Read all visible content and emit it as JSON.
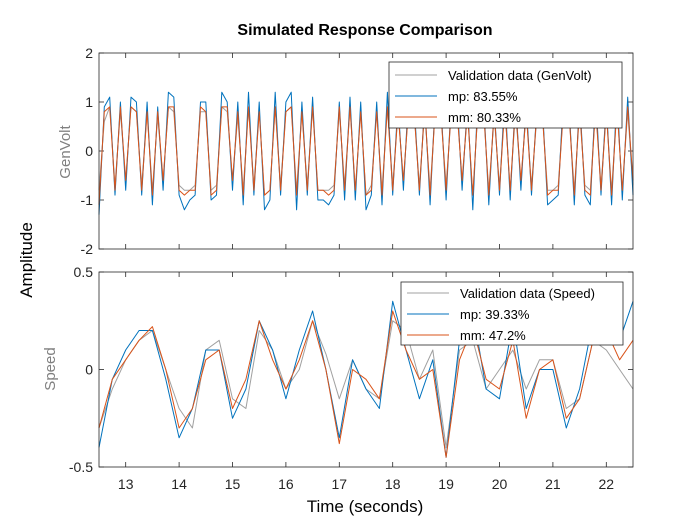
{
  "chart_data": {
    "type": "line",
    "title": "Simulated Response Comparison",
    "xlabel": "Time (seconds)",
    "ylabel": "Amplitude",
    "xlim": [
      12.5,
      22.5
    ],
    "xticks": [
      "13",
      "14",
      "15",
      "16",
      "17",
      "18",
      "19",
      "20",
      "21",
      "22"
    ],
    "colors": {
      "validation": "#a0a0a0",
      "mp": "#0072bd",
      "mm": "#d95319"
    },
    "panels": [
      {
        "ylabel": "GenVolt",
        "ylim": [
          -2,
          2
        ],
        "yticks": [
          "2",
          "1",
          "0",
          "-1",
          "-2"
        ],
        "legend_position": "top-right",
        "series": [
          {
            "name": "Validation data (GenVolt)",
            "x": [
              12.5,
              12.6,
              12.7,
              12.8,
              12.9,
              13.0,
              13.1,
              13.2,
              13.3,
              13.4,
              13.5,
              13.6,
              13.7,
              13.8,
              13.9,
              14.0,
              14.1,
              14.2,
              14.3,
              14.4,
              14.5,
              14.6,
              14.7,
              14.8,
              14.9,
              15.0,
              15.1,
              15.2,
              15.3,
              15.4,
              15.5,
              15.6,
              15.7,
              15.8,
              15.9,
              16.0,
              16.1,
              16.2,
              16.3,
              16.4,
              16.5,
              16.6,
              16.7,
              16.8,
              16.9,
              17.0,
              17.1,
              17.2,
              17.3,
              17.4,
              17.5,
              17.6,
              17.7,
              17.8,
              17.9,
              18.0,
              18.1,
              18.2,
              18.3,
              18.4,
              18.5,
              18.6,
              18.7,
              18.8,
              18.9,
              19.0,
              19.1,
              19.2,
              19.3,
              19.4,
              19.5,
              19.6,
              19.7,
              19.8,
              19.9,
              20.0,
              20.1,
              20.2,
              20.3,
              20.4,
              20.5,
              20.6,
              20.7,
              20.8,
              20.9,
              21.0,
              21.1,
              21.2,
              21.3,
              21.4,
              21.5,
              21.6,
              21.7,
              21.8,
              21.9,
              22.0,
              22.1,
              22.2,
              22.3,
              22.4,
              22.5
            ],
            "y": [
              -0.8,
              0.6,
              0.9,
              -0.7,
              0.8,
              -0.6,
              0.9,
              0.8,
              -0.7,
              0.8,
              -0.8,
              0.7,
              -0.6,
              0.9,
              0.8,
              -0.7,
              -0.8,
              -0.8,
              -0.7,
              0.8,
              0.8,
              -0.8,
              -0.7,
              0.9,
              0.8,
              -0.6,
              0.7,
              -0.8,
              0.9,
              -0.7,
              0.8,
              -0.9,
              -0.8,
              0.9,
              -0.7,
              0.8,
              0.9,
              -0.8,
              0.8,
              -0.7,
              0.9,
              -0.8,
              -0.8,
              -0.8,
              -0.7,
              0.8,
              -0.7,
              0.9,
              -0.8,
              0.8,
              -0.9,
              -0.7,
              0.8,
              -0.8,
              0.9,
              -0.7,
              0.8,
              -0.6,
              0.9,
              0.8,
              -0.7,
              0.8,
              -0.8,
              0.9,
              0.8,
              -0.7,
              0.8,
              0.9,
              -0.6,
              0.8,
              -0.9,
              0.9,
              0.8,
              -0.8,
              0.7,
              -0.7,
              0.9,
              -0.8,
              0.8,
              -0.6,
              0.8,
              -0.7,
              0.7,
              0.8,
              -0.8,
              -0.8,
              -0.7,
              0.9,
              0.8,
              -0.8,
              0.8,
              -0.7,
              -0.8,
              0.9,
              -0.7,
              0.8,
              -0.8,
              0.9,
              -0.8,
              0.8,
              -0.7
            ]
          },
          {
            "name": "mp: 83.55%",
            "x": [
              12.5,
              12.6,
              12.7,
              12.8,
              12.9,
              13.0,
              13.1,
              13.2,
              13.3,
              13.4,
              13.5,
              13.6,
              13.7,
              13.8,
              13.9,
              14.0,
              14.1,
              14.2,
              14.3,
              14.4,
              14.5,
              14.6,
              14.7,
              14.8,
              14.9,
              15.0,
              15.1,
              15.2,
              15.3,
              15.4,
              15.5,
              15.6,
              15.7,
              15.8,
              15.9,
              16.0,
              16.1,
              16.2,
              16.3,
              16.4,
              16.5,
              16.6,
              16.7,
              16.8,
              16.9,
              17.0,
              17.1,
              17.2,
              17.3,
              17.4,
              17.5,
              17.6,
              17.7,
              17.8,
              17.9,
              18.0,
              18.1,
              18.2,
              18.3,
              18.4,
              18.5,
              18.6,
              18.7,
              18.8,
              18.9,
              19.0,
              19.1,
              19.2,
              19.3,
              19.4,
              19.5,
              19.6,
              19.7,
              19.8,
              19.9,
              20.0,
              20.1,
              20.2,
              20.3,
              20.4,
              20.5,
              20.6,
              20.7,
              20.8,
              20.9,
              21.0,
              21.1,
              21.2,
              21.3,
              21.4,
              21.5,
              21.6,
              21.7,
              21.8,
              21.9,
              22.0,
              22.1,
              22.2,
              22.3,
              22.4,
              22.5
            ],
            "y": [
              -1.3,
              0.9,
              1.1,
              -0.9,
              1.0,
              -0.8,
              1.1,
              1.0,
              -0.9,
              1.0,
              -1.1,
              0.9,
              -0.8,
              1.2,
              1.1,
              -0.9,
              -1.2,
              -1.0,
              -0.9,
              1.0,
              1.0,
              -1.0,
              -0.9,
              1.2,
              1.0,
              -0.8,
              1.0,
              -1.1,
              1.2,
              -0.9,
              1.0,
              -1.2,
              -1.0,
              1.2,
              -0.9,
              1.0,
              1.2,
              -1.2,
              1.0,
              -0.9,
              1.1,
              -1.0,
              -1.0,
              -1.1,
              -0.9,
              1.0,
              -1.0,
              1.1,
              -1.0,
              1.0,
              -1.2,
              -0.9,
              1.0,
              -1.1,
              1.2,
              -0.9,
              1.0,
              -0.8,
              1.2,
              1.0,
              -0.9,
              1.0,
              -1.1,
              1.1,
              1.0,
              -1.0,
              1.1,
              1.2,
              -0.8,
              1.0,
              -1.2,
              1.2,
              1.1,
              -1.1,
              0.9,
              -0.9,
              1.2,
              -1.0,
              1.1,
              -0.8,
              1.0,
              -0.9,
              0.9,
              1.0,
              -1.1,
              -1.0,
              -0.9,
              1.2,
              1.0,
              -1.1,
              1.1,
              -0.9,
              -1.1,
              1.2,
              -0.9,
              1.0,
              -1.1,
              1.2,
              -1.0,
              1.1,
              -0.9
            ]
          },
          {
            "name": "mm: 80.33%",
            "x": [
              12.5,
              12.6,
              12.7,
              12.8,
              12.9,
              13.0,
              13.1,
              13.2,
              13.3,
              13.4,
              13.5,
              13.6,
              13.7,
              13.8,
              13.9,
              14.0,
              14.1,
              14.2,
              14.3,
              14.4,
              14.5,
              14.6,
              14.7,
              14.8,
              14.9,
              15.0,
              15.1,
              15.2,
              15.3,
              15.4,
              15.5,
              15.6,
              15.7,
              15.8,
              15.9,
              16.0,
              16.1,
              16.2,
              16.3,
              16.4,
              16.5,
              16.6,
              16.7,
              16.8,
              16.9,
              17.0,
              17.1,
              17.2,
              17.3,
              17.4,
              17.5,
              17.6,
              17.7,
              17.8,
              17.9,
              18.0,
              18.1,
              18.2,
              18.3,
              18.4,
              18.5,
              18.6,
              18.7,
              18.8,
              18.9,
              19.0,
              19.1,
              19.2,
              19.3,
              19.4,
              19.5,
              19.6,
              19.7,
              19.8,
              19.9,
              20.0,
              20.1,
              20.2,
              20.3,
              20.4,
              20.5,
              20.6,
              20.7,
              20.8,
              20.9,
              21.0,
              21.1,
              21.2,
              21.3,
              21.4,
              21.5,
              21.6,
              21.7,
              21.8,
              21.9,
              22.0,
              22.1,
              22.2,
              22.3,
              22.4,
              22.5
            ],
            "y": [
              -1.1,
              0.8,
              0.9,
              -0.8,
              0.9,
              -0.6,
              0.9,
              0.8,
              -0.8,
              0.8,
              -0.9,
              0.8,
              -0.6,
              0.9,
              0.9,
              -0.8,
              -0.9,
              -0.8,
              -0.8,
              0.9,
              0.8,
              -0.9,
              -0.8,
              0.9,
              0.9,
              -0.6,
              0.8,
              -0.9,
              0.9,
              -0.8,
              0.8,
              -0.9,
              -0.8,
              0.9,
              -0.8,
              0.8,
              0.9,
              -0.9,
              0.8,
              -0.8,
              0.9,
              -0.8,
              -0.8,
              -0.9,
              -0.8,
              0.9,
              -0.8,
              0.9,
              -0.8,
              0.8,
              -0.9,
              -0.8,
              0.8,
              -0.9,
              0.9,
              -0.8,
              0.8,
              -0.6,
              0.9,
              0.8,
              -0.8,
              0.9,
              -0.9,
              0.9,
              0.8,
              -0.8,
              0.9,
              0.9,
              -0.6,
              0.8,
              -0.9,
              0.9,
              0.9,
              -0.9,
              0.8,
              -0.8,
              0.9,
              -0.8,
              0.9,
              -0.6,
              0.8,
              -0.8,
              0.8,
              0.8,
              -0.9,
              -0.8,
              -0.8,
              0.9,
              0.8,
              -0.9,
              0.9,
              -0.8,
              -0.9,
              0.9,
              -0.8,
              0.8,
              -0.9,
              0.9,
              -0.8,
              0.9,
              -0.6
            ]
          }
        ]
      },
      {
        "ylabel": "Speed",
        "ylim": [
          -0.5,
          0.5
        ],
        "yticks": [
          "0.5",
          "0",
          "-0.5"
        ],
        "legend_position": "top-right",
        "series": [
          {
            "name": "Validation data (Speed)",
            "x": [
              12.5,
              12.75,
              13.0,
              13.25,
              13.5,
              13.75,
              14.0,
              14.25,
              14.5,
              14.75,
              15.0,
              15.25,
              15.5,
              15.75,
              16.0,
              16.25,
              16.5,
              16.75,
              17.0,
              17.25,
              17.5,
              17.75,
              18.0,
              18.25,
              18.5,
              18.75,
              19.0,
              19.25,
              19.5,
              19.75,
              20.0,
              20.25,
              20.5,
              20.75,
              21.0,
              21.25,
              21.5,
              21.75,
              22.0,
              22.25,
              22.5
            ],
            "y": [
              -0.3,
              -0.1,
              0.05,
              0.15,
              0.2,
              0.0,
              -0.2,
              -0.3,
              0.1,
              0.15,
              -0.15,
              -0.2,
              0.2,
              0.1,
              -0.1,
              0.0,
              0.25,
              0.08,
              -0.15,
              0.05,
              -0.1,
              -0.15,
              0.25,
              0.2,
              -0.05,
              0.1,
              -0.4,
              0.1,
              0.15,
              -0.1,
              0.0,
              0.1,
              -0.1,
              0.05,
              0.05,
              -0.2,
              -0.15,
              0.15,
              0.1,
              0.0,
              -0.1
            ]
          },
          {
            "name": "mp: 39.33%",
            "x": [
              12.5,
              12.75,
              13.0,
              13.25,
              13.5,
              13.75,
              14.0,
              14.25,
              14.5,
              14.75,
              15.0,
              15.25,
              15.5,
              15.75,
              16.0,
              16.25,
              16.5,
              16.75,
              17.0,
              17.25,
              17.5,
              17.75,
              18.0,
              18.25,
              18.5,
              18.75,
              19.0,
              19.25,
              19.5,
              19.75,
              20.0,
              20.25,
              20.5,
              20.75,
              21.0,
              21.25,
              21.5,
              21.75,
              22.0,
              22.25,
              22.5
            ],
            "y": [
              -0.4,
              -0.05,
              0.1,
              0.2,
              0.2,
              -0.05,
              -0.35,
              -0.2,
              0.1,
              0.1,
              -0.25,
              -0.1,
              0.25,
              0.1,
              -0.15,
              0.1,
              0.3,
              0.0,
              -0.35,
              0.05,
              -0.1,
              -0.2,
              0.35,
              0.1,
              -0.15,
              0.05,
              -0.45,
              0.15,
              0.3,
              -0.1,
              -0.15,
              0.25,
              -0.2,
              0.0,
              0.0,
              -0.3,
              -0.1,
              0.25,
              0.2,
              0.15,
              0.35
            ]
          },
          {
            "name": "mm: 47.2%",
            "x": [
              12.5,
              12.75,
              13.0,
              13.25,
              13.5,
              13.75,
              14.0,
              14.25,
              14.5,
              14.75,
              15.0,
              15.25,
              15.5,
              15.75,
              16.0,
              16.25,
              16.5,
              16.75,
              17.0,
              17.25,
              17.5,
              17.75,
              18.0,
              18.25,
              18.5,
              18.75,
              19.0,
              19.25,
              19.5,
              19.75,
              20.0,
              20.25,
              20.5,
              20.75,
              21.0,
              21.25,
              21.5,
              21.75,
              22.0,
              22.25,
              22.5
            ],
            "y": [
              -0.3,
              -0.05,
              0.05,
              0.15,
              0.22,
              0.0,
              -0.3,
              -0.2,
              0.05,
              0.1,
              -0.2,
              -0.05,
              0.25,
              0.05,
              -0.1,
              0.05,
              0.25,
              0.0,
              -0.38,
              0.0,
              -0.05,
              -0.15,
              0.3,
              0.1,
              -0.05,
              0.0,
              -0.45,
              0.05,
              0.22,
              -0.05,
              -0.1,
              0.15,
              -0.25,
              0.0,
              0.05,
              -0.25,
              -0.15,
              0.15,
              0.2,
              0.05,
              0.15
            ]
          }
        ]
      }
    ]
  }
}
